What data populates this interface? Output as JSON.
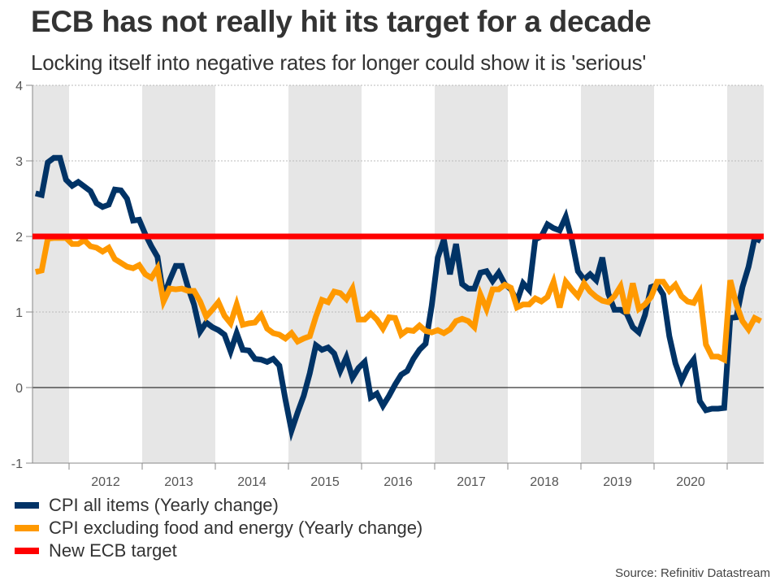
{
  "title": "ECB has not really hit its target for a decade",
  "subtitle": "Locking itself into negative rates for longer could show it is 'serious'",
  "source": "Source: Refinitiv Datastream",
  "colors": {
    "cpi_all": "#003366",
    "cpi_core": "#ff9900",
    "target": "#ff0000",
    "band": "#e6e6e6",
    "grid": "#bbbbbb",
    "zero_line": "#333333",
    "axis": "#888888"
  },
  "legend": [
    {
      "label": "CPI all items (Yearly change)",
      "color": "#003366"
    },
    {
      "label": "CPI excluding food and energy (Yearly change)",
      "color": "#ff9900"
    },
    {
      "label": "New ECB target",
      "color": "#ff0000"
    }
  ],
  "chart_data": {
    "type": "line",
    "title": "ECB has not really hit its target for a decade",
    "subtitle": "Locking itself into negative rates for longer could show it is 'serious'",
    "xlabel": "",
    "ylabel": "",
    "x_start": "2011-07",
    "x_frequency": "monthly",
    "x_range": [
      2011.5,
      2021.5
    ],
    "ylim": [
      -1,
      4
    ],
    "y_ticks": [
      -1,
      0,
      1,
      2,
      3,
      4
    ],
    "x_tick_labels": [
      "2012",
      "2013",
      "2014",
      "2015",
      "2016",
      "2017",
      "2018",
      "2019",
      "2020"
    ],
    "grid": true,
    "alternating_year_shading": true,
    "legend_position": "bottom-left",
    "series": [
      {
        "name": "CPI all items (Yearly change)",
        "values": [
          2.57,
          2.55,
          2.98,
          3.04,
          3.04,
          2.75,
          2.67,
          2.72,
          2.66,
          2.6,
          2.44,
          2.39,
          2.42,
          2.62,
          2.61,
          2.5,
          2.21,
          2.22,
          2.03,
          1.87,
          1.73,
          1.2,
          1.42,
          1.61,
          1.61,
          1.33,
          1.1,
          0.74,
          0.86,
          0.8,
          0.76,
          0.7,
          0.48,
          0.72,
          0.5,
          0.49,
          0.38,
          0.37,
          0.34,
          0.38,
          0.29,
          -0.16,
          -0.57,
          -0.33,
          -0.11,
          0.19,
          0.56,
          0.5,
          0.53,
          0.45,
          0.22,
          0.4,
          0.13,
          0.26,
          0.34,
          -0.13,
          -0.08,
          -0.24,
          -0.11,
          0.04,
          0.17,
          0.22,
          0.38,
          0.5,
          0.58,
          1.08,
          1.72,
          1.96,
          1.5,
          1.9,
          1.37,
          1.31,
          1.31,
          1.52,
          1.54,
          1.41,
          1.52,
          1.37,
          1.3,
          1.14,
          1.38,
          1.29,
          1.96,
          2.0,
          2.16,
          2.11,
          2.08,
          2.26,
          1.95,
          1.54,
          1.43,
          1.5,
          1.42,
          1.72,
          1.24,
          1.03,
          1.03,
          0.98,
          0.8,
          0.73,
          0.96,
          1.33,
          1.36,
          1.23,
          0.68,
          0.32,
          0.09,
          0.26,
          0.37,
          -0.18,
          -0.3,
          -0.28,
          -0.28,
          -0.27,
          0.92,
          0.93,
          1.33,
          1.6,
          1.98,
          1.94
        ]
      },
      {
        "name": "CPI excluding food and energy (Yearly change)",
        "values": [
          1.53,
          1.55,
          1.97,
          1.98,
          1.98,
          1.98,
          1.9,
          1.9,
          1.95,
          1.87,
          1.85,
          1.8,
          1.85,
          1.7,
          1.65,
          1.6,
          1.58,
          1.62,
          1.5,
          1.45,
          1.58,
          1.14,
          1.31,
          1.3,
          1.31,
          1.28,
          1.28,
          1.14,
          0.94,
          1.03,
          1.13,
          0.95,
          0.85,
          1.1,
          0.83,
          0.85,
          0.86,
          0.96,
          0.78,
          0.72,
          0.7,
          0.65,
          0.72,
          0.61,
          0.65,
          0.68,
          0.94,
          1.16,
          1.13,
          1.27,
          1.25,
          1.17,
          1.31,
          0.9,
          0.9,
          0.98,
          0.9,
          0.78,
          0.93,
          0.92,
          0.7,
          0.76,
          0.75,
          0.82,
          0.75,
          0.73,
          0.76,
          0.72,
          0.77,
          0.88,
          0.91,
          0.88,
          0.8,
          1.23,
          1.04,
          1.3,
          1.3,
          1.36,
          1.32,
          1.06,
          1.1,
          1.1,
          1.18,
          1.14,
          1.2,
          1.4,
          1.06,
          1.4,
          1.3,
          1.21,
          1.38,
          1.27,
          1.2,
          1.15,
          1.13,
          1.21,
          1.34,
          0.98,
          1.38,
          1.04,
          1.1,
          1.2,
          1.4,
          1.4,
          1.28,
          1.36,
          1.21,
          1.14,
          1.12,
          1.26,
          0.57,
          0.41,
          0.41,
          0.37,
          1.42,
          1.1,
          0.88,
          0.77,
          0.92,
          0.88
        ]
      },
      {
        "name": "New ECB target",
        "values": [
          2,
          2
        ]
      }
    ]
  }
}
